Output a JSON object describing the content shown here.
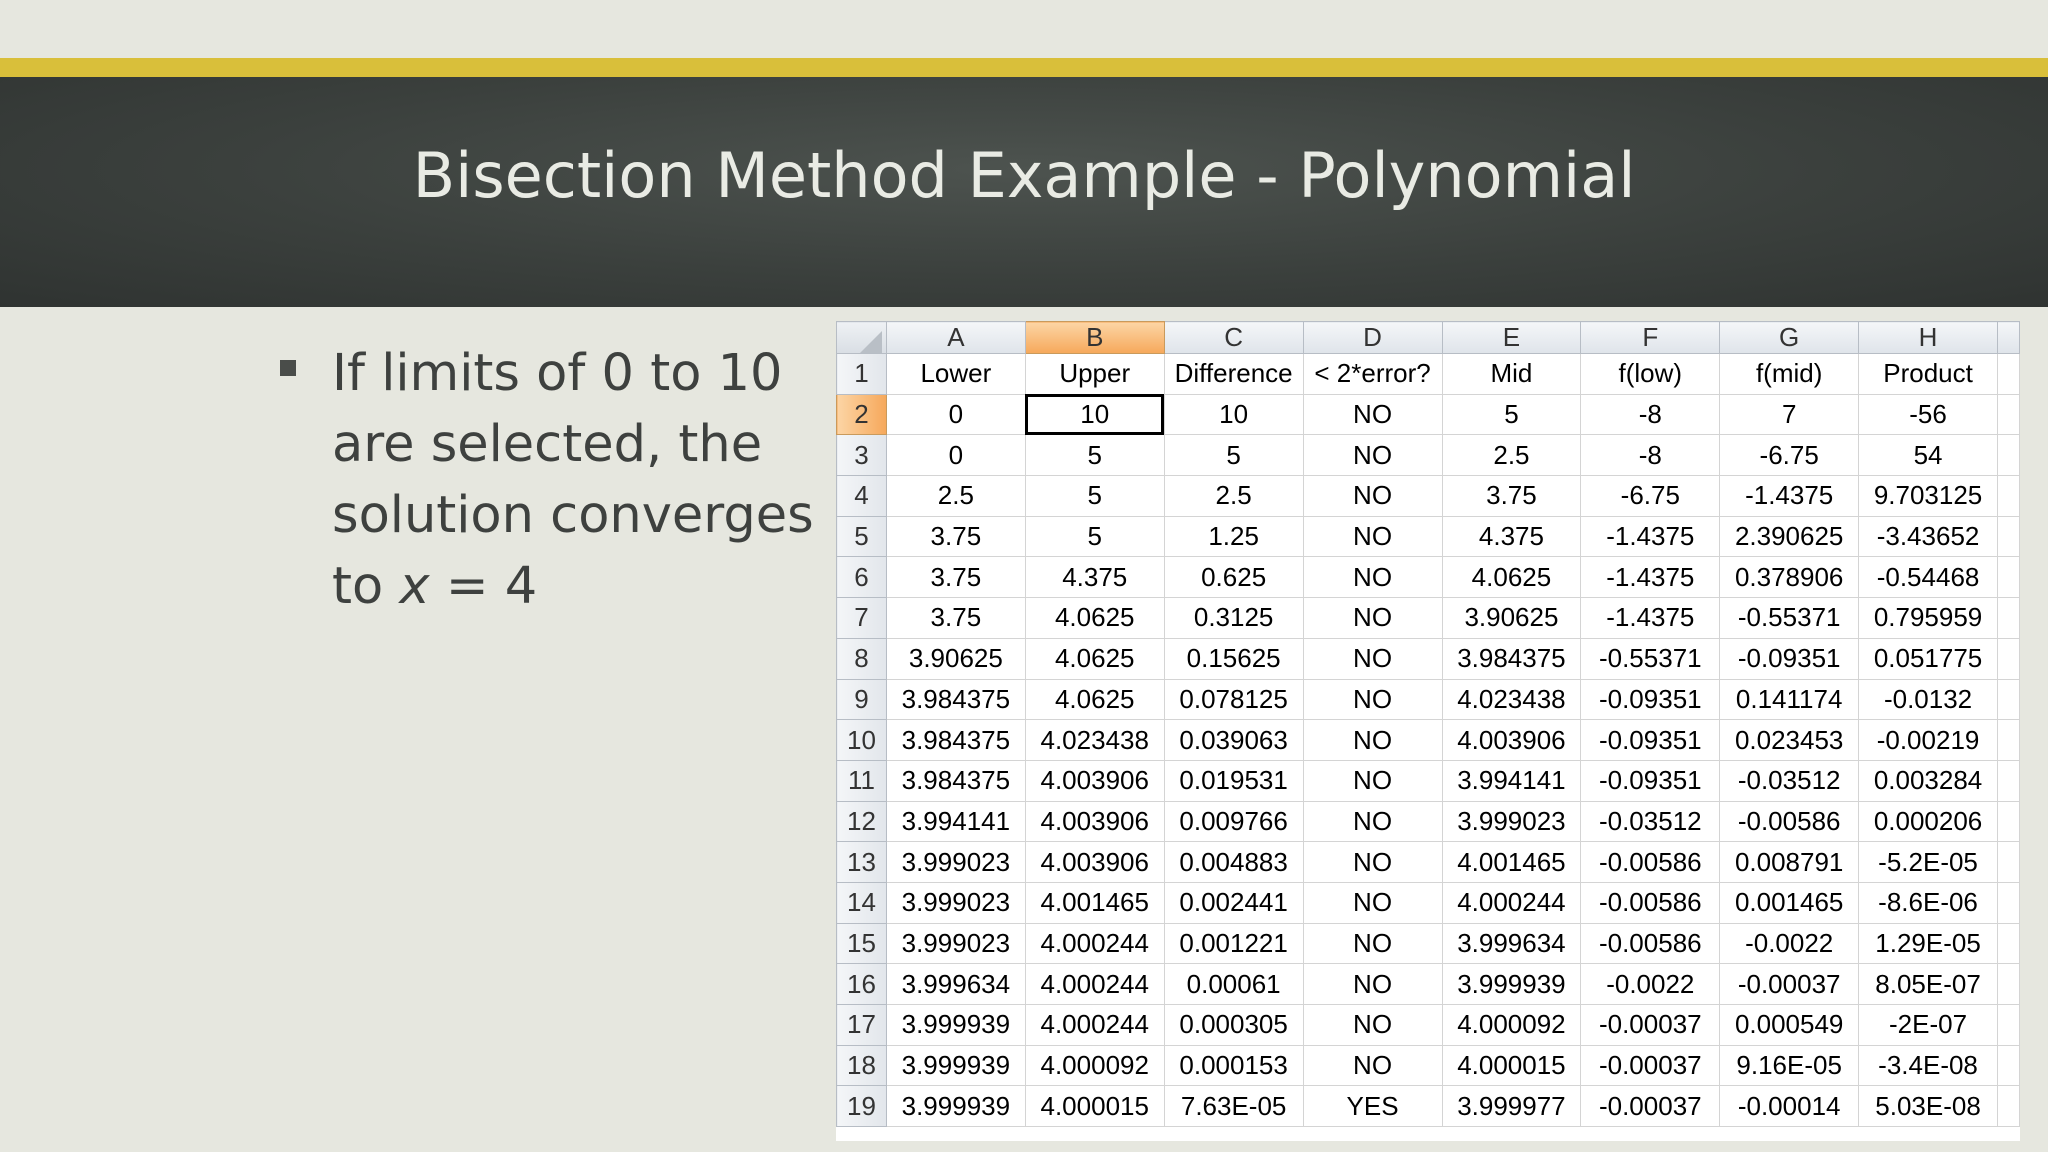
{
  "slide": {
    "title": "Bisection Method Example - Polynomial",
    "bullet": {
      "line1": "If limits of 0 to 10",
      "line2": "are selected, the",
      "line3": "solution converges",
      "line4_prefix": "to ",
      "line4_var": "x",
      "line4_suffix": " = 4"
    },
    "colors": {
      "gold_bar": "#d9bf3a",
      "header_bg": "#3b403d",
      "slide_bg": "#e6e7df"
    }
  },
  "spreadsheet": {
    "column_headers": [
      "A",
      "B",
      "C",
      "D",
      "E",
      "F",
      "G",
      "H"
    ],
    "selected_column": "B",
    "selected_row": "2",
    "header_row": [
      "Lower",
      "Upper",
      "Difference",
      "< 2*error?",
      "Mid",
      "f(low)",
      "f(mid)",
      "Product"
    ],
    "rows": [
      {
        "n": "2",
        "cells": [
          "0",
          "10",
          "10",
          "NO",
          "5",
          "-8",
          "7",
          "-56"
        ]
      },
      {
        "n": "3",
        "cells": [
          "0",
          "5",
          "5",
          "NO",
          "2.5",
          "-8",
          "-6.75",
          "54"
        ]
      },
      {
        "n": "4",
        "cells": [
          "2.5",
          "5",
          "2.5",
          "NO",
          "3.75",
          "-6.75",
          "-1.4375",
          "9.703125"
        ]
      },
      {
        "n": "5",
        "cells": [
          "3.75",
          "5",
          "1.25",
          "NO",
          "4.375",
          "-1.4375",
          "2.390625",
          "-3.43652"
        ]
      },
      {
        "n": "6",
        "cells": [
          "3.75",
          "4.375",
          "0.625",
          "NO",
          "4.0625",
          "-1.4375",
          "0.378906",
          "-0.54468"
        ]
      },
      {
        "n": "7",
        "cells": [
          "3.75",
          "4.0625",
          "0.3125",
          "NO",
          "3.90625",
          "-1.4375",
          "-0.55371",
          "0.795959"
        ]
      },
      {
        "n": "8",
        "cells": [
          "3.90625",
          "4.0625",
          "0.15625",
          "NO",
          "3.984375",
          "-0.55371",
          "-0.09351",
          "0.051775"
        ]
      },
      {
        "n": "9",
        "cells": [
          "3.984375",
          "4.0625",
          "0.078125",
          "NO",
          "4.023438",
          "-0.09351",
          "0.141174",
          "-0.0132"
        ]
      },
      {
        "n": "10",
        "cells": [
          "3.984375",
          "4.023438",
          "0.039063",
          "NO",
          "4.003906",
          "-0.09351",
          "0.023453",
          "-0.00219"
        ]
      },
      {
        "n": "11",
        "cells": [
          "3.984375",
          "4.003906",
          "0.019531",
          "NO",
          "3.994141",
          "-0.09351",
          "-0.03512",
          "0.003284"
        ]
      },
      {
        "n": "12",
        "cells": [
          "3.994141",
          "4.003906",
          "0.009766",
          "NO",
          "3.999023",
          "-0.03512",
          "-0.00586",
          "0.000206"
        ]
      },
      {
        "n": "13",
        "cells": [
          "3.999023",
          "4.003906",
          "0.004883",
          "NO",
          "4.001465",
          "-0.00586",
          "0.008791",
          "-5.2E-05"
        ]
      },
      {
        "n": "14",
        "cells": [
          "3.999023",
          "4.001465",
          "0.002441",
          "NO",
          "4.000244",
          "-0.00586",
          "0.001465",
          "-8.6E-06"
        ]
      },
      {
        "n": "15",
        "cells": [
          "3.999023",
          "4.000244",
          "0.001221",
          "NO",
          "3.999634",
          "-0.00586",
          "-0.0022",
          "1.29E-05"
        ]
      },
      {
        "n": "16",
        "cells": [
          "3.999634",
          "4.000244",
          "0.00061",
          "NO",
          "3.999939",
          "-0.0022",
          "-0.00037",
          "8.05E-07"
        ]
      },
      {
        "n": "17",
        "cells": [
          "3.999939",
          "4.000244",
          "0.000305",
          "NO",
          "4.000092",
          "-0.00037",
          "0.000549",
          "-2E-07"
        ]
      },
      {
        "n": "18",
        "cells": [
          "3.999939",
          "4.000092",
          "0.000153",
          "NO",
          "4.000015",
          "-0.00037",
          "9.16E-05",
          "-3.4E-08"
        ]
      },
      {
        "n": "19",
        "cells": [
          "3.999939",
          "4.000015",
          "7.63E-05",
          "YES",
          "3.999977",
          "-0.00037",
          "-0.00014",
          "5.03E-08"
        ]
      }
    ]
  }
}
